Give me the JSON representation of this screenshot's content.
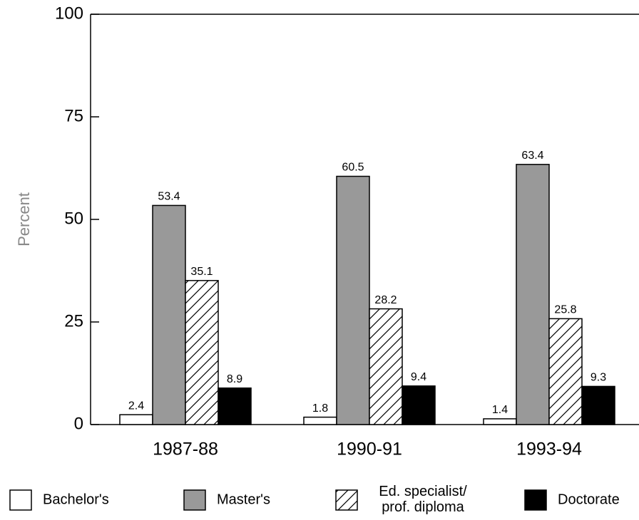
{
  "chart_data": {
    "type": "bar",
    "y_label": "Percent",
    "categories": [
      "1987-88",
      "1990-91",
      "1993-94"
    ],
    "series": [
      {
        "name": "Bachelor's",
        "color": "#ffffff",
        "values": [
          2.4,
          1.8,
          1.4
        ]
      },
      {
        "name": "Master's",
        "color": "#999999",
        "values": [
          53.4,
          60.5,
          63.4
        ]
      },
      {
        "name": "Ed. specialist/\nprof. diploma",
        "color": "#ffffff",
        "pattern": "diagonal-hatch",
        "values": [
          35.1,
          28.2,
          25.8
        ]
      },
      {
        "name": "Doctorate",
        "color": "#000000",
        "values": [
          8.9,
          9.4,
          9.3
        ]
      }
    ],
    "ylim": [
      0,
      100
    ],
    "yticks": [
      0,
      25,
      50,
      75,
      100
    ],
    "legend": "bottom"
  }
}
